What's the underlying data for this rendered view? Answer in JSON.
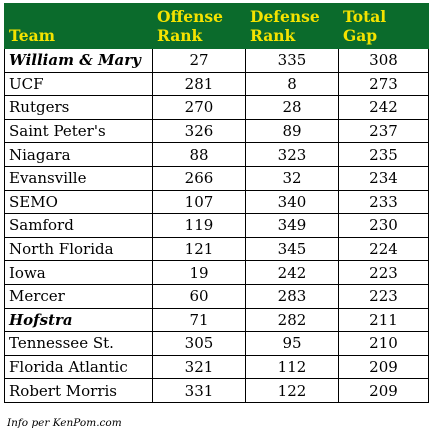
{
  "header": {
    "team": "Team",
    "offense_top": "Offense",
    "offense_bottom": "Rank",
    "defense_top": "Defense",
    "defense_bottom": "Rank",
    "total_gap": "Total Gap"
  },
  "colors": {
    "header_bg": "#0b6b2c",
    "header_accent": "#f4e300",
    "header_text": "#ffffff"
  },
  "rows": [
    {
      "team": "William & Mary",
      "offense": "27",
      "defense": "335",
      "gap": "308",
      "emphasis": true
    },
    {
      "team": "UCF",
      "offense": "281",
      "defense": "8",
      "gap": "273",
      "emphasis": false
    },
    {
      "team": "Rutgers",
      "offense": "270",
      "defense": "28",
      "gap": "242",
      "emphasis": false
    },
    {
      "team": "Saint Peter's",
      "offense": "326",
      "defense": "89",
      "gap": "237",
      "emphasis": false
    },
    {
      "team": "Niagara",
      "offense": "88",
      "defense": "323",
      "gap": "235",
      "emphasis": false
    },
    {
      "team": "Evansville",
      "offense": "266",
      "defense": "32",
      "gap": "234",
      "emphasis": false
    },
    {
      "team": "SEMO",
      "offense": "107",
      "defense": "340",
      "gap": "233",
      "emphasis": false
    },
    {
      "team": "Samford",
      "offense": "119",
      "defense": "349",
      "gap": "230",
      "emphasis": false
    },
    {
      "team": "North Florida",
      "offense": "121",
      "defense": "345",
      "gap": "224",
      "emphasis": false
    },
    {
      "team": "Iowa",
      "offense": "19",
      "defense": "242",
      "gap": "223",
      "emphasis": false
    },
    {
      "team": "Mercer",
      "offense": "60",
      "defense": "283",
      "gap": "223",
      "emphasis": false
    },
    {
      "team": "Hofstra",
      "offense": "71",
      "defense": "282",
      "gap": "211",
      "emphasis": true
    },
    {
      "team": "Tennessee St.",
      "offense": "305",
      "defense": "95",
      "gap": "210",
      "emphasis": false
    },
    {
      "team": "Florida Atlantic",
      "offense": "321",
      "defense": "112",
      "gap": "209",
      "emphasis": false
    },
    {
      "team": "Robert Morris",
      "offense": "331",
      "defense": "122",
      "gap": "209",
      "emphasis": false
    }
  ],
  "footer": {
    "source": "Info per KenPom.com"
  }
}
